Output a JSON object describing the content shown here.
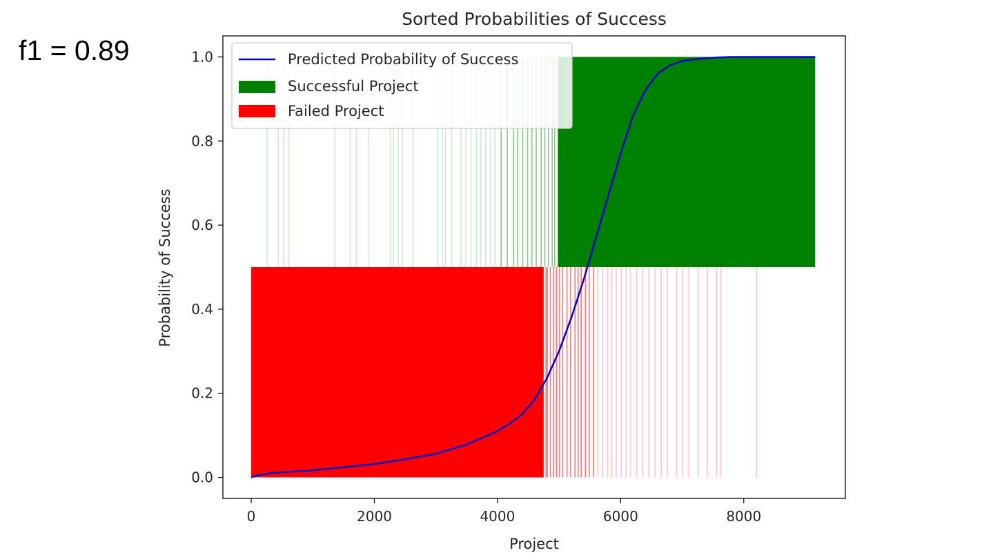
{
  "annotation": {
    "f1_text": "f1 = 0.89"
  },
  "chart_data": {
    "type": "bar",
    "title": "Sorted Probabilities of Success",
    "xlabel": "Project",
    "ylabel": "Probability of Success",
    "xlim": [
      -460,
      9650
    ],
    "ylim": [
      -0.05,
      1.05
    ],
    "x_ticks": [
      0,
      2000,
      4000,
      6000,
      8000
    ],
    "x_tick_labels": [
      "0",
      "2000",
      "4000",
      "6000",
      "8000"
    ],
    "y_ticks": [
      0.0,
      0.2,
      0.4,
      0.6,
      0.8,
      1.0
    ],
    "y_tick_labels": [
      "0.0",
      "0.2",
      "0.4",
      "0.6",
      "0.8",
      "1.0"
    ],
    "n_projects": 9160,
    "grid": false,
    "legend_position": "top-left",
    "series": [
      {
        "name": "Predicted Probability of Success",
        "kind": "line",
        "color": "#0000cc",
        "x": [
          0,
          100,
          300,
          500,
          1000,
          1500,
          2000,
          2500,
          3000,
          3500,
          4000,
          4200,
          4400,
          4600,
          4800,
          5000,
          5200,
          5400,
          5600,
          5800,
          6000,
          6200,
          6400,
          6600,
          6800,
          7000,
          7300,
          7600,
          7800,
          8000,
          8500,
          9160
        ],
        "y": [
          0.0,
          0.005,
          0.01,
          0.012,
          0.017,
          0.024,
          0.032,
          0.043,
          0.056,
          0.078,
          0.11,
          0.128,
          0.15,
          0.185,
          0.235,
          0.3,
          0.38,
          0.47,
          0.57,
          0.67,
          0.77,
          0.86,
          0.92,
          0.96,
          0.98,
          0.99,
          0.996,
          0.999,
          1.0,
          1.0,
          1.0,
          1.0
        ]
      },
      {
        "name": "Successful Project",
        "kind": "bar",
        "color": "#008000",
        "bar_bottom": 0.5,
        "bar_top": 1.0,
        "solid_range": [
          4980,
          9160
        ],
        "sparse_x": [
          250,
          430,
          520,
          600,
          1350,
          1600,
          1700,
          1900,
          2250,
          2300,
          2380,
          2450,
          2620,
          3020,
          3100,
          3150,
          3250,
          3400,
          3480,
          3560,
          3650,
          3720,
          3800,
          3880,
          3950,
          4050,
          4150,
          4250,
          4320,
          4400,
          4480,
          4550,
          4620,
          4700,
          4760,
          4820,
          4880,
          4920
        ]
      },
      {
        "name": "Failed Project",
        "kind": "bar",
        "color": "#ff0000",
        "bar_bottom": 0.0,
        "bar_top": 0.5,
        "solid_range": [
          0,
          4750
        ],
        "sparse_x": [
          4780,
          4800,
          4850,
          4900,
          4950,
          5000,
          5050,
          5120,
          5180,
          5250,
          5300,
          5350,
          5420,
          5480,
          5550,
          5620,
          5700,
          5780,
          5850,
          5920,
          6000,
          6080,
          6150,
          6250,
          6350,
          6450,
          6550,
          6650,
          6750,
          6900,
          7000,
          7100,
          7250,
          7400,
          7550,
          7620,
          8200
        ]
      }
    ]
  }
}
